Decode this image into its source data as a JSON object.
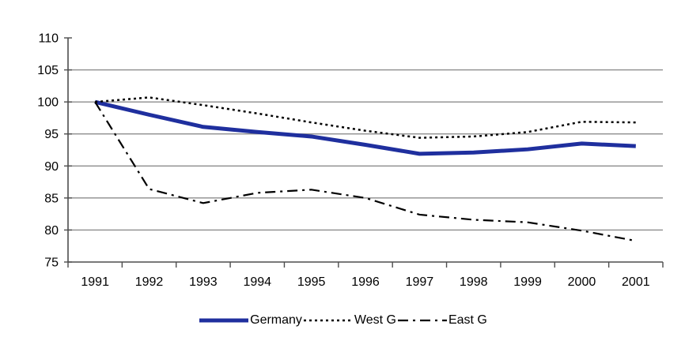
{
  "chart_data": {
    "type": "line",
    "title": "",
    "xlabel": "",
    "ylabel": "",
    "x": [
      1991,
      1992,
      1993,
      1994,
      1995,
      1996,
      1997,
      1998,
      1999,
      2000,
      2001
    ],
    "x_labels": [
      "1991",
      "1992",
      "1993",
      "1994",
      "1995",
      "1996",
      "1997",
      "1998",
      "1999",
      "2000",
      "2001"
    ],
    "series": [
      {
        "name": "Germany",
        "style": "solid",
        "color": "#1f2f9e",
        "stroke_width": 5,
        "values": [
          100,
          98.0,
          96.1,
          95.3,
          94.6,
          93.3,
          91.9,
          92.1,
          92.6,
          93.5,
          93.1
        ]
      },
      {
        "name": "West G",
        "style": "dotted",
        "color": "#000000",
        "stroke_width": 2.5,
        "values": [
          100,
          100.7,
          99.5,
          98.2,
          96.8,
          95.5,
          94.4,
          94.6,
          95.3,
          96.9,
          96.8
        ]
      },
      {
        "name": "East G",
        "style": "dashdot",
        "color": "#000000",
        "stroke_width": 2.2,
        "values": [
          100,
          86.4,
          84.2,
          85.8,
          86.3,
          85.0,
          82.4,
          81.6,
          81.2,
          79.9,
          78.3
        ]
      }
    ],
    "ylim": [
      75,
      110
    ],
    "yticks": [
      75,
      80,
      85,
      90,
      95,
      100,
      105,
      110
    ],
    "ytick_labels": [
      "75",
      "80",
      "85",
      "90",
      "95",
      "100",
      "105",
      "110"
    ],
    "grid": true,
    "legend_position": "bottom",
    "colors": {
      "gridline": "#8c8c8c",
      "axis": "#4d4d4d",
      "tick": "#4d4d4d",
      "label_text": "#000000",
      "background": "#ffffff",
      "germany_line": "#1f2f9e"
    }
  }
}
